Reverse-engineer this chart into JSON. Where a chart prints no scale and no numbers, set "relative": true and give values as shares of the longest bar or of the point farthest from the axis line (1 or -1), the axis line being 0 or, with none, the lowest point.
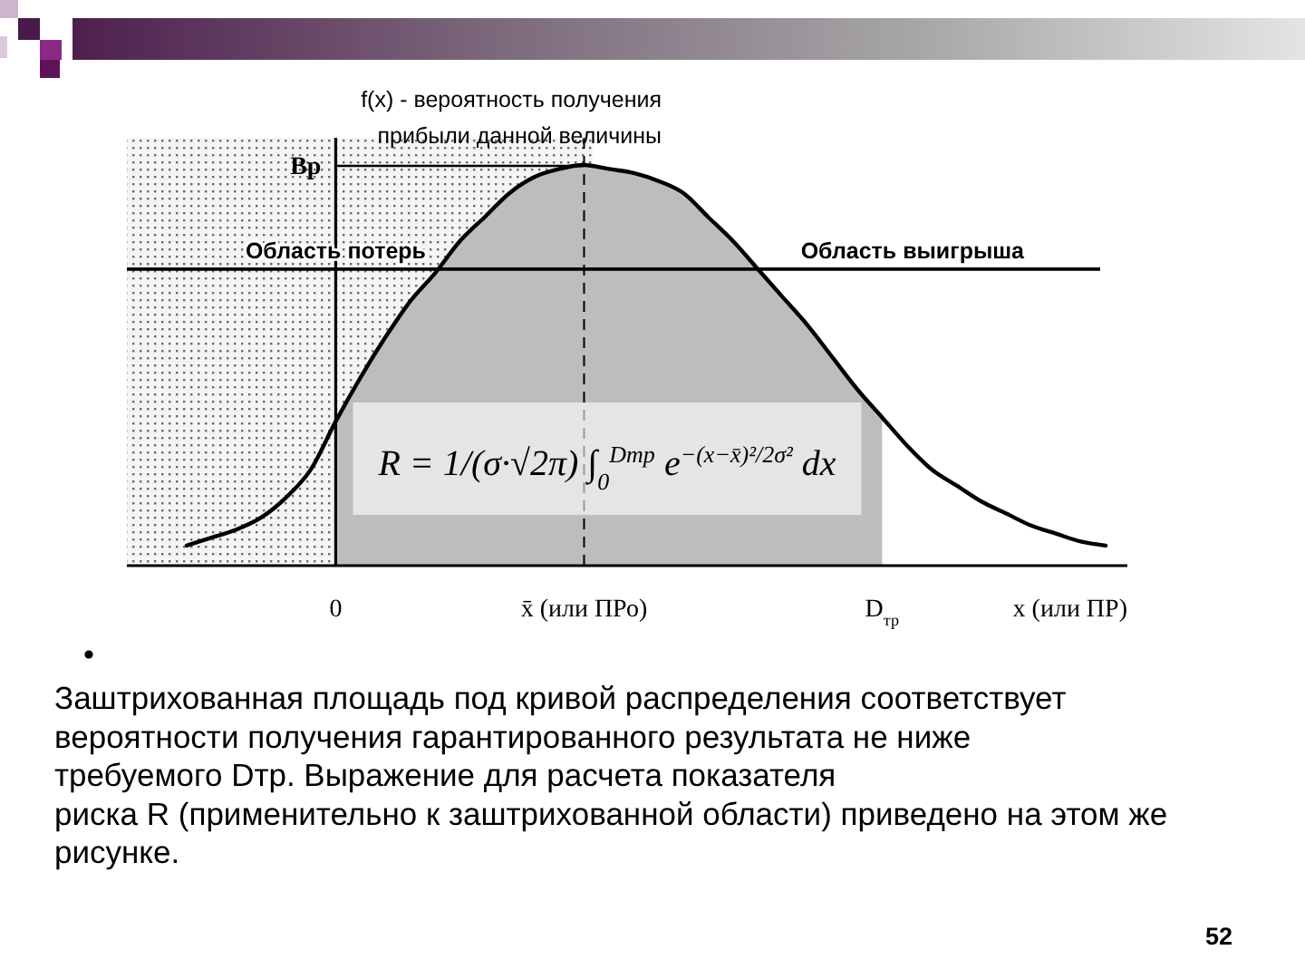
{
  "chart_data": {
    "type": "line",
    "relative": true,
    "categories": [
      null,
      null,
      null,
      null,
      null,
      null,
      "0",
      null,
      null,
      null,
      null,
      null,
      null,
      null,
      null,
      null,
      "x̄ (или ПРо)",
      null,
      null,
      null,
      null,
      null,
      null,
      null,
      null,
      null,
      null,
      null,
      "D$_{тр}$",
      null,
      null,
      null,
      null,
      null,
      null,
      null,
      null,
      null
    ],
    "series": [
      {
        "type": "area",
        "color": "#bdbdbd",
        "values": [
          null,
          null,
          null,
          null,
          null,
          null,
          0.36,
          0.47,
          0.57,
          0.66,
          0.73,
          0.81,
          0.87,
          0.93,
          0.97,
          0.99,
          1,
          0.99,
          0.98,
          0.96,
          0.93,
          0.87,
          0.81,
          0.74,
          0.67,
          0.6,
          0.52,
          0.44,
          0.37,
          null,
          null,
          null,
          null,
          null,
          null,
          null,
          null,
          null
        ]
      },
      {
        "color": "#000000",
        "values": [
          0.05,
          0.07,
          0.09,
          0.12,
          0.17,
          0.24,
          0.36,
          0.47,
          0.57,
          0.66,
          0.73,
          0.81,
          0.87,
          0.93,
          0.97,
          0.99,
          1,
          0.99,
          0.98,
          0.96,
          0.93,
          0.87,
          0.81,
          0.74,
          0.67,
          0.6,
          0.52,
          0.44,
          0.37,
          0.3,
          0.24,
          0.2,
          0.16,
          0.13,
          0.1,
          0.08,
          0.06,
          0.05
        ]
      }
    ],
    "xlabel": "x (или ПР)",
    "ylabel": "f(x) - вероятность получения прибыли данной величины",
    "ref_lines": [
      {
        "axis": "x",
        "value": "0",
        "color": "#000000"
      },
      {
        "axis": "x",
        "value": "x̄ (или ПРо)",
        "color": "#000000",
        "line_style": "dashed"
      },
      {
        "axis": "y",
        "value": 0.74,
        "label": "Область выигрыша",
        "color": "#000000"
      }
    ],
    "annotations": [
      {
        "text": "Вр",
        "x": "x̄ (или ПРо)",
        "y": 1
      },
      {
        "text": "Область потерь",
        "x": "0",
        "y": 0.74
      },
      "R = 1/(σ·√2π) ∫$_{0}$$^{Dтр}$ e$^{−(x−x̄)²/2σ²}$ dx",
      "Заштрихованная площадь под кривой распределения соответствует\nвероятности получения гарантированного результата не ниже\nтребуемого Dтр. Выражение для расчета показателя\nриска R (применительно к заштрихованной области) приведено на этом же\nрисунке.",
      "52"
    ]
  }
}
